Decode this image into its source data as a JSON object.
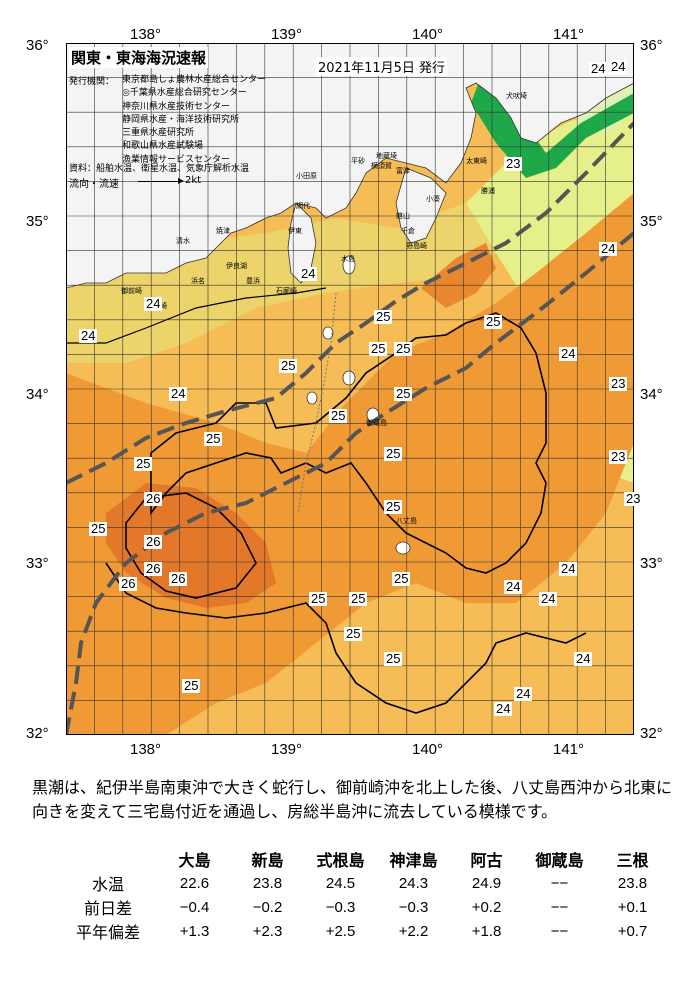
{
  "header": {
    "title": "関東・東海海況速報",
    "date": "2021年11月5日 発行",
    "org_label": "発行機関：",
    "organizations": [
      "東京都島しょ農林水産総合センター",
      "◎千葉県水産総合研究センター",
      "神奈川県水産技術センター",
      "静岡県水産・海洋技術研究所",
      "三重県水産研究所",
      "和歌山県水産試験場",
      "漁業情報サービスセンター"
    ],
    "sources": "資料：船舶水温、衛星水温、気象庁解析水温",
    "flow_legend": "流向・流速",
    "flow_speed": "2kt"
  },
  "map": {
    "longitude_labels": [
      "138°",
      "139°",
      "140°",
      "141°"
    ],
    "latitude_labels": [
      "36°",
      "35°",
      "34°",
      "33°",
      "32°"
    ],
    "place_names": [
      "犬吠埼",
      "太東崎",
      "勝浦",
      "小湊",
      "館山",
      "平砂",
      "横須賀",
      "富津",
      "小田原",
      "伊東",
      "石廊崎",
      "網代",
      "清水",
      "焼津",
      "御前崎",
      "浜名",
      "豊浜",
      "伊良湖",
      "大王崎",
      "地蔵埼",
      "木島",
      "御蔵島",
      "八丈島",
      "千倉",
      "野島崎"
    ],
    "isotherm_labels": [
      "24",
      "24",
      "24",
      "24",
      "24",
      "24",
      "24",
      "24",
      "24",
      "24",
      "24",
      "24",
      "24",
      "24",
      "23",
      "23",
      "23",
      "23",
      "25",
      "25",
      "25",
      "25",
      "25",
      "25",
      "25",
      "25",
      "25",
      "25",
      "25",
      "25",
      "25",
      "25",
      "25",
      "25",
      "25",
      "25",
      "26",
      "26",
      "26",
      "26",
      "26"
    ],
    "colors": {
      "land": "#f4f4f4",
      "coast_green": "#1ea84a",
      "water_cool": "#e6f08a",
      "water_light_orange": "#f6bc55",
      "water_orange": "#f09a35",
      "water_warm": "#e4782a",
      "kuroshio_axis": "#555555"
    }
  },
  "description": "黒潮は、紀伊半島南東沖で大きく蛇行し、御前崎沖を北上した後、八丈島西沖から北東に向きを変えて三宅島付近を通過し、房総半島沖に流去している模様です。",
  "observation_table": {
    "stations": [
      "大島",
      "新島",
      "式根島",
      "神津島",
      "阿古",
      "御蔵島",
      "三根"
    ],
    "rows": [
      {
        "label": "水温",
        "values": [
          "22.6",
          "23.8",
          "24.5",
          "24.3",
          "24.9",
          "−−",
          "23.8"
        ]
      },
      {
        "label": "前日差",
        "values": [
          "−0.4",
          "−0.2",
          "−0.3",
          "−0.3",
          "+0.2",
          "−−",
          "+0.1"
        ]
      },
      {
        "label": "平年偏差",
        "values": [
          "+1.3",
          "+2.3",
          "+2.5",
          "+2.2",
          "+1.8",
          "−−",
          "+0.7"
        ]
      }
    ]
  }
}
